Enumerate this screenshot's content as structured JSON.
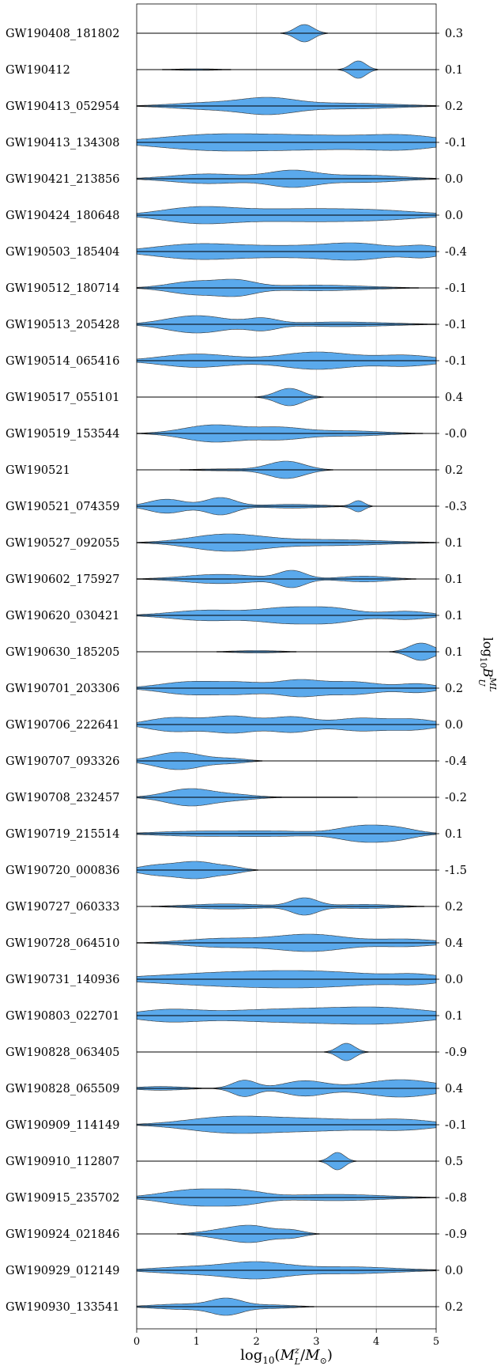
{
  "chart_data": {
    "type": "violin",
    "xlabel": "log10(M_L^z / M_sun)",
    "ylabel_right": "log10 B_U^ML",
    "xlim": [
      0,
      5
    ],
    "xticks": [
      "0",
      "1",
      "2",
      "3",
      "4",
      "5"
    ],
    "grid": true,
    "violin_color": "#5aa9ec",
    "events": [
      {
        "name": "GW190408_181802",
        "bayes_factor": "0.3",
        "peaks": [
          [
            2.8,
            0.9,
            0.15
          ]
        ]
      },
      {
        "name": "GW190412",
        "bayes_factor": "0.1",
        "peaks": [
          [
            3.7,
            0.9,
            0.13
          ],
          [
            1.0,
            0.08,
            0.4
          ]
        ]
      },
      {
        "name": "GW190413_052954",
        "bayes_factor": "0.2",
        "peaks": [
          [
            2.2,
            0.75,
            0.45
          ],
          [
            1.2,
            0.35,
            0.6
          ],
          [
            3.5,
            0.3,
            0.8
          ]
        ]
      },
      {
        "name": "GW190413_134308",
        "bayes_factor": "-0.1",
        "peaks": [
          [
            1.2,
            0.5,
            0.9
          ],
          [
            3.0,
            0.45,
            1.0
          ],
          [
            4.5,
            0.4,
            0.6
          ]
        ]
      },
      {
        "name": "GW190421_213856",
        "bayes_factor": "0.0",
        "peaks": [
          [
            2.6,
            0.65,
            0.4
          ],
          [
            1.2,
            0.4,
            0.6
          ],
          [
            3.8,
            0.3,
            0.6
          ]
        ]
      },
      {
        "name": "GW190424_180648",
        "bayes_factor": "0.0",
        "peaks": [
          [
            1.0,
            0.6,
            0.6
          ],
          [
            2.5,
            0.45,
            0.9
          ],
          [
            4.0,
            0.35,
            0.8
          ]
        ]
      },
      {
        "name": "GW190503_185404",
        "bayes_factor": "-0.4",
        "peaks": [
          [
            1.0,
            0.7,
            0.7
          ],
          [
            3.7,
            0.7,
            0.55
          ],
          [
            2.5,
            0.45,
            0.7
          ],
          [
            4.8,
            0.5,
            0.3
          ]
        ]
      },
      {
        "name": "GW190512_180714",
        "bayes_factor": "-0.1",
        "peaks": [
          [
            1.0,
            0.7,
            0.45
          ],
          [
            1.7,
            0.6,
            0.3
          ],
          [
            3.0,
            0.3,
            0.8
          ]
        ]
      },
      {
        "name": "GW190513_205428",
        "bayes_factor": "-0.1",
        "peaks": [
          [
            1.0,
            0.75,
            0.5
          ],
          [
            2.1,
            0.45,
            0.25
          ],
          [
            3.4,
            0.2,
            0.8
          ]
        ]
      },
      {
        "name": "GW190514_065416",
        "bayes_factor": "-0.1",
        "peaks": [
          [
            3.0,
            0.65,
            0.6
          ],
          [
            1.0,
            0.5,
            0.6
          ],
          [
            4.5,
            0.4,
            0.5
          ]
        ]
      },
      {
        "name": "GW190517_055101",
        "bayes_factor": "0.4",
        "peaks": [
          [
            2.55,
            0.95,
            0.22
          ]
        ]
      },
      {
        "name": "GW190519_153544",
        "bayes_factor": "-0.0",
        "peaks": [
          [
            1.3,
            0.65,
            0.5
          ],
          [
            2.4,
            0.4,
            0.4
          ],
          [
            3.5,
            0.2,
            0.6
          ]
        ]
      },
      {
        "name": "GW190521",
        "bayes_factor": "0.2",
        "peaks": [
          [
            2.5,
            0.9,
            0.3
          ],
          [
            1.5,
            0.1,
            0.5
          ]
        ]
      },
      {
        "name": "GW190521_074359",
        "bayes_factor": "-0.3",
        "peaks": [
          [
            1.4,
            0.55,
            0.25
          ],
          [
            0.5,
            0.45,
            0.3
          ],
          [
            3.7,
            0.35,
            0.1
          ],
          [
            2.6,
            0.12,
            0.5
          ]
        ]
      },
      {
        "name": "GW190527_092055",
        "bayes_factor": "0.1",
        "peaks": [
          [
            1.5,
            0.55,
            0.6
          ],
          [
            3.2,
            0.2,
            0.9
          ]
        ]
      },
      {
        "name": "GW190602_175927",
        "bayes_factor": "0.1",
        "peaks": [
          [
            2.6,
            0.7,
            0.22
          ],
          [
            1.4,
            0.4,
            0.6
          ],
          [
            3.8,
            0.25,
            0.4
          ]
        ]
      },
      {
        "name": "GW190620_030421",
        "bayes_factor": "0.1",
        "peaks": [
          [
            2.5,
            0.6,
            0.45
          ],
          [
            3.3,
            0.55,
            0.4
          ],
          [
            1.2,
            0.45,
            0.6
          ],
          [
            4.5,
            0.35,
            0.4
          ]
        ]
      },
      {
        "name": "GW190630_185205",
        "bayes_factor": "0.1",
        "peaks": [
          [
            4.75,
            0.9,
            0.2
          ],
          [
            2.0,
            0.12,
            0.4
          ]
        ]
      },
      {
        "name": "GW190701_203306",
        "bayes_factor": "0.2",
        "peaks": [
          [
            2.7,
            0.7,
            0.35
          ],
          [
            0.9,
            0.6,
            0.5
          ],
          [
            3.6,
            0.6,
            0.45
          ],
          [
            1.8,
            0.45,
            0.4
          ],
          [
            4.7,
            0.4,
            0.3
          ]
        ]
      },
      {
        "name": "GW190706_222641",
        "bayes_factor": "0.0",
        "peaks": [
          [
            1.6,
            0.55,
            0.4
          ],
          [
            2.6,
            0.5,
            0.35
          ],
          [
            0.6,
            0.45,
            0.4
          ],
          [
            3.7,
            0.4,
            0.4
          ],
          [
            4.6,
            0.35,
            0.4
          ]
        ]
      },
      {
        "name": "GW190707_093326",
        "bayes_factor": "-0.4",
        "peaks": [
          [
            0.7,
            0.85,
            0.4
          ],
          [
            1.6,
            0.2,
            0.25
          ]
        ]
      },
      {
        "name": "GW190708_232457",
        "bayes_factor": "-0.2",
        "peaks": [
          [
            0.9,
            0.85,
            0.4
          ],
          [
            1.7,
            0.2,
            0.3
          ],
          [
            3.0,
            0.04,
            0.8
          ]
        ]
      },
      {
        "name": "GW190719_215514",
        "bayes_factor": "0.1",
        "peaks": [
          [
            3.7,
            0.7,
            0.35
          ],
          [
            4.3,
            0.65,
            0.35
          ],
          [
            2.2,
            0.3,
            0.8
          ],
          [
            0.8,
            0.2,
            0.6
          ]
        ]
      },
      {
        "name": "GW190720_000836",
        "bayes_factor": "-1.5",
        "peaks": [
          [
            1.0,
            0.8,
            0.35
          ],
          [
            0.3,
            0.4,
            0.3
          ],
          [
            1.6,
            0.2,
            0.2
          ]
        ]
      },
      {
        "name": "GW190727_060333",
        "bayes_factor": "0.2",
        "peaks": [
          [
            2.8,
            0.8,
            0.22
          ],
          [
            1.5,
            0.25,
            0.6
          ],
          [
            3.8,
            0.2,
            0.5
          ]
        ]
      },
      {
        "name": "GW190728_064510",
        "bayes_factor": "0.4",
        "peaks": [
          [
            2.9,
            0.7,
            0.6
          ],
          [
            1.4,
            0.35,
            0.6
          ],
          [
            4.5,
            0.3,
            0.5
          ]
        ]
      },
      {
        "name": "GW190731_140936",
        "bayes_factor": "0.0",
        "peaks": [
          [
            1.5,
            0.7,
            1.2
          ],
          [
            3.2,
            0.65,
            1.0
          ],
          [
            4.7,
            0.4,
            0.4
          ]
        ]
      },
      {
        "name": "GW190803_022701",
        "bayes_factor": "0.1",
        "peaks": [
          [
            2.5,
            0.6,
            1.2
          ],
          [
            4.2,
            0.55,
            0.8
          ],
          [
            0.5,
            0.45,
            0.5
          ]
        ]
      },
      {
        "name": "GW190828_063405",
        "bayes_factor": "-0.9",
        "peaks": [
          [
            3.5,
            0.9,
            0.14
          ]
        ]
      },
      {
        "name": "GW190828_065509",
        "bayes_factor": "0.4",
        "peaks": [
          [
            1.8,
            0.65,
            0.2
          ],
          [
            2.8,
            0.6,
            0.35
          ],
          [
            4.4,
            0.7,
            0.6
          ],
          [
            0.4,
            0.15,
            0.4
          ]
        ]
      },
      {
        "name": "GW190909_114149",
        "bayes_factor": "-0.1",
        "peaks": [
          [
            1.5,
            0.6,
            0.7
          ],
          [
            3.0,
            0.5,
            0.9
          ],
          [
            4.5,
            0.35,
            0.5
          ]
        ]
      },
      {
        "name": "GW190910_112807",
        "bayes_factor": "0.5",
        "peaks": [
          [
            3.35,
            0.9,
            0.12
          ]
        ]
      },
      {
        "name": "GW190915_235702",
        "bayes_factor": "-0.8",
        "peaks": [
          [
            1.0,
            0.65,
            0.55
          ],
          [
            1.8,
            0.35,
            0.35
          ],
          [
            3.3,
            0.25,
            0.8
          ]
        ]
      },
      {
        "name": "GW190924_021846",
        "bayes_factor": "-0.9",
        "peaks": [
          [
            1.9,
            0.9,
            0.35
          ],
          [
            1.3,
            0.25,
            0.3
          ],
          [
            2.6,
            0.35,
            0.2
          ]
        ]
      },
      {
        "name": "GW190929_012149",
        "bayes_factor": "0.0",
        "peaks": [
          [
            2.0,
            0.75,
            0.5
          ],
          [
            0.9,
            0.35,
            0.6
          ],
          [
            3.5,
            0.35,
            0.8
          ]
        ]
      },
      {
        "name": "GW190930_133541",
        "bayes_factor": "0.2",
        "peaks": [
          [
            1.5,
            0.8,
            0.25
          ],
          [
            0.8,
            0.3,
            0.5
          ],
          [
            2.2,
            0.2,
            0.4
          ]
        ]
      }
    ]
  }
}
